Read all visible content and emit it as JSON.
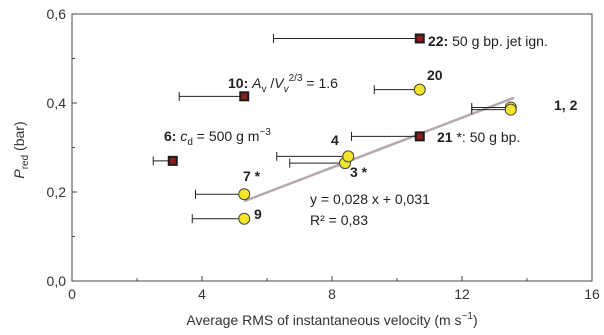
{
  "chart_data": {
    "type": "scatter",
    "xlim": [
      0,
      16
    ],
    "ylim": [
      0,
      0.6
    ],
    "xticks": [
      "0",
      "4",
      "8",
      "12",
      "16"
    ],
    "yticks": [
      "0,0",
      "0,2",
      "0,4",
      "0,6"
    ],
    "xlabel_main": "Average RMS of instantaneous velocity (m s",
    "xlabel_sup": "−1",
    "xlabel_end": ")",
    "ylabel_main": "P",
    "ylabel_sub": "red",
    "ylabel_end": " (bar)",
    "colors": {
      "yellow": "#f2e52a",
      "red_marker": "#8e1b1e",
      "fit_line": "#b5a9a9",
      "frame": "#444444"
    },
    "series": [
      {
        "marker": "yellow-circle",
        "points": [
          {
            "id": "1",
            "x": 13.5,
            "y": 0.39,
            "xerr_low": 12.3
          },
          {
            "id": "2",
            "x": 13.5,
            "y": 0.385,
            "xerr_low": 12.3
          },
          {
            "id": "3",
            "x": 8.4,
            "y": 0.265,
            "xerr_low": 6.7
          },
          {
            "id": "4",
            "x": 8.5,
            "y": 0.28,
            "xerr_low": 6.3
          },
          {
            "id": "7",
            "x": 5.3,
            "y": 0.195,
            "xerr_low": 3.8
          },
          {
            "id": "9",
            "x": 5.3,
            "y": 0.14,
            "xerr_low": 3.7
          },
          {
            "id": "20",
            "x": 10.7,
            "y": 0.43,
            "xerr_low": 9.3
          }
        ]
      },
      {
        "marker": "red-square",
        "points": [
          {
            "id": "6",
            "x": 3.1,
            "y": 0.27,
            "xerr_low": 2.5
          },
          {
            "id": "10",
            "x": 5.3,
            "y": 0.415,
            "xerr_low": 3.3
          },
          {
            "id": "21",
            "x": 10.7,
            "y": 0.325,
            "xerr_low": 8.6
          },
          {
            "id": "22",
            "x": 10.7,
            "y": 0.545,
            "xerr_low": 6.2
          }
        ]
      }
    ],
    "fit": {
      "slope": 0.028,
      "intercept": 0.031,
      "x_range": [
        5.3,
        13.6
      ]
    },
    "annotations": {
      "eq_line1": "y = 0,028 x + 0,031",
      "eq_line2": "R² = 0,83",
      "lbl_1_2": "1, 2",
      "lbl_20": "20",
      "lbl_4": "4",
      "lbl_3": "3 *",
      "lbl_7": "7 *",
      "lbl_9": "9",
      "lbl_22_num": "22:",
      "lbl_22_text": " 50 g bp. jet ign.",
      "lbl_21_num": "21",
      "lbl_21_text": " *: 50 g bp.",
      "lbl_10_num": "10:",
      "lbl_10_expr": "A",
      "lbl_10_sub1": "v",
      "lbl_10_slash": " /",
      "lbl_10_V": "V",
      "lbl_10_sub2": "v",
      "lbl_10_sup": "2/3",
      "lbl_10_end": " = 1.6",
      "lbl_6_num": "6:",
      "lbl_6_c": " c",
      "lbl_6_sub": "d",
      "lbl_6_eq": " = 500 g m",
      "lbl_6_sup": "−3"
    }
  }
}
